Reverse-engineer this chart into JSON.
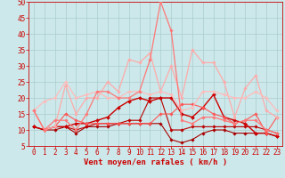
{
  "background_color": "#cce8ea",
  "grid_color": "#aacccc",
  "line_color_dark": "#cc0000",
  "xlabel": "Vent moyen/en rafales ( km/h )",
  "xlabel_color": "#cc0000",
  "xlim": [
    -0.5,
    23.5
  ],
  "ylim": [
    5,
    50
  ],
  "yticks": [
    5,
    10,
    15,
    20,
    25,
    30,
    35,
    40,
    45,
    50
  ],
  "xticks": [
    0,
    1,
    2,
    3,
    4,
    5,
    6,
    7,
    8,
    9,
    10,
    11,
    12,
    13,
    14,
    15,
    16,
    17,
    18,
    19,
    20,
    21,
    22,
    23
  ],
  "series": [
    {
      "y": [
        11,
        10,
        10,
        11,
        9,
        11,
        11,
        11,
        12,
        12,
        12,
        12,
        12,
        7,
        6,
        7,
        9,
        10,
        10,
        9,
        9,
        9,
        9,
        8
      ],
      "color": "#aa0000",
      "lw": 0.8,
      "marker": "D",
      "ms": 1.8
    },
    {
      "y": [
        11,
        10,
        11,
        11,
        10,
        11,
        12,
        12,
        12,
        13,
        13,
        20,
        20,
        10,
        10,
        11,
        11,
        11,
        11,
        11,
        11,
        11,
        10,
        9
      ],
      "color": "#bb0000",
      "lw": 0.8,
      "marker": "D",
      "ms": 1.8
    },
    {
      "y": [
        11,
        10,
        11,
        11,
        12,
        12,
        13,
        14,
        17,
        19,
        20,
        19,
        20,
        20,
        15,
        14,
        17,
        21,
        14,
        13,
        12,
        9,
        9,
        8
      ],
      "color": "#cc0000",
      "lw": 1.0,
      "marker": "D",
      "ms": 2.0
    },
    {
      "y": [
        16,
        10,
        11,
        15,
        13,
        12,
        12,
        12,
        12,
        12,
        12,
        12,
        15,
        15,
        18,
        18,
        17,
        15,
        14,
        12,
        13,
        15,
        9,
        14
      ],
      "color": "#ff5555",
      "lw": 0.8,
      "marker": "D",
      "ms": 1.8
    },
    {
      "y": [
        16,
        10,
        11,
        24,
        15,
        20,
        20,
        25,
        22,
        32,
        31,
        34,
        22,
        30,
        20,
        35,
        31,
        31,
        25,
        14,
        23,
        27,
        16,
        14
      ],
      "color": "#ffaaaa",
      "lw": 0.9,
      "marker": "D",
      "ms": 1.8
    },
    {
      "y": [
        16,
        19,
        20,
        25,
        20,
        21,
        22,
        20,
        20,
        22,
        22,
        21,
        22,
        21,
        16,
        17,
        22,
        22,
        21,
        20,
        20,
        22,
        20,
        16
      ],
      "color": "#ffbbbb",
      "lw": 0.9,
      "marker": "D",
      "ms": 1.8
    },
    {
      "y": [
        16,
        10,
        13,
        13,
        10,
        15,
        22,
        22,
        20,
        20,
        22,
        32,
        50,
        41,
        13,
        12,
        14,
        14,
        13,
        12,
        13,
        13,
        10,
        9
      ],
      "color": "#ff7777",
      "lw": 0.9,
      "marker": "D",
      "ms": 1.8
    }
  ],
  "tick_fontsize": 5.5,
  "xlabel_fontsize": 6.5
}
